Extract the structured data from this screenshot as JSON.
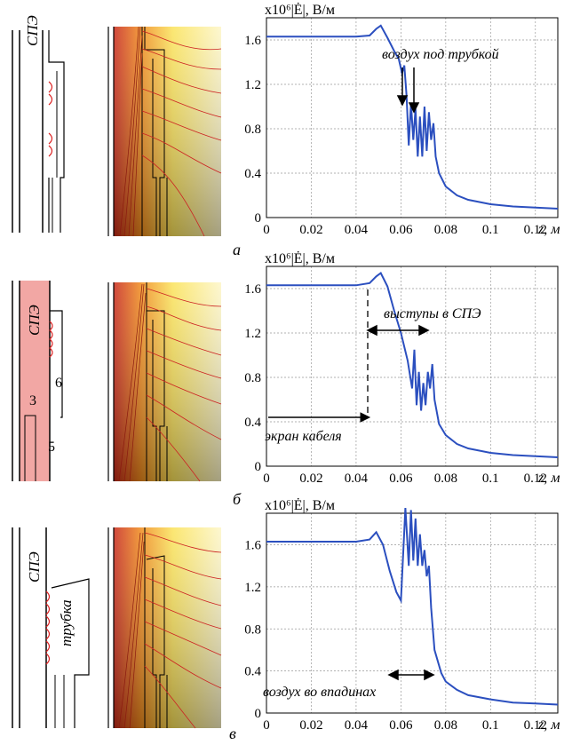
{
  "panels": [
    {
      "letter": "а",
      "geom_labels": [
        "СПЭ"
      ],
      "annotation": "воздух под трубкой",
      "ylabel": "x10⁶|Ė|, В/м",
      "xlabel": "z, м"
    },
    {
      "letter": "б",
      "geom_labels": [
        "СПЭ",
        "3",
        "6",
        "5"
      ],
      "annotation": "выступы в СПЭ",
      "annotation2": "экран кабеля",
      "ylabel": "x10⁶|Ė|, В/м",
      "xlabel": "z, м"
    },
    {
      "letter": "в",
      "geom_labels": [
        "СПЭ",
        "трубка"
      ],
      "annotation": "воздух во впадинах",
      "ylabel": "x10⁶|Ė|, В/м",
      "xlabel": "z, м"
    }
  ],
  "colors": {
    "curve": "#2b4fbf",
    "red": "#cc2a2a",
    "xlpe_fill": "#f2a7a4"
  },
  "chart_data": [
    {
      "type": "line",
      "xlabel": "z, м",
      "ylabel": "x10⁶|Ė|, В/м",
      "xlim": [
        0,
        0.13
      ],
      "ylim": [
        0,
        1.8
      ],
      "xticks": [
        "0",
        "0.02",
        "0.04",
        "0.06",
        "0.08",
        "0.1",
        "0.12"
      ],
      "yticks": [
        "0",
        "0.4",
        "0.8",
        "1.2",
        "1.6"
      ],
      "grid": true,
      "x": [
        0,
        0.02,
        0.04,
        0.046,
        0.049,
        0.051,
        0.054,
        0.057,
        0.059,
        0.0605,
        0.0615,
        0.0625,
        0.0635,
        0.0645,
        0.0655,
        0.0665,
        0.0675,
        0.0685,
        0.0695,
        0.0705,
        0.0715,
        0.0725,
        0.0735,
        0.0745,
        0.0755,
        0.077,
        0.08,
        0.085,
        0.09,
        0.1,
        0.11,
        0.12,
        0.13
      ],
      "y": [
        1.63,
        1.63,
        1.63,
        1.64,
        1.7,
        1.73,
        1.62,
        1.5,
        1.43,
        1.3,
        1.37,
        1.1,
        0.65,
        1.03,
        0.7,
        0.98,
        0.55,
        0.91,
        0.55,
        1.0,
        0.6,
        0.95,
        0.7,
        0.85,
        0.55,
        0.4,
        0.28,
        0.2,
        0.16,
        0.12,
        0.1,
        0.09,
        0.08
      ]
    },
    {
      "type": "line",
      "xlabel": "z, м",
      "ylabel": "x10⁶|Ė|, В/м",
      "xlim": [
        0,
        0.13
      ],
      "ylim": [
        0,
        1.8
      ],
      "xticks": [
        "0",
        "0.02",
        "0.04",
        "0.06",
        "0.08",
        "0.1",
        "0.12"
      ],
      "yticks": [
        "0",
        "0.4",
        "0.8",
        "1.2",
        "1.6"
      ],
      "grid": true,
      "x": [
        0,
        0.02,
        0.04,
        0.046,
        0.049,
        0.051,
        0.054,
        0.057,
        0.06,
        0.063,
        0.065,
        0.066,
        0.067,
        0.068,
        0.069,
        0.07,
        0.071,
        0.072,
        0.073,
        0.074,
        0.075,
        0.077,
        0.08,
        0.085,
        0.09,
        0.1,
        0.11,
        0.12,
        0.13
      ],
      "y": [
        1.63,
        1.63,
        1.63,
        1.65,
        1.71,
        1.74,
        1.62,
        1.4,
        1.2,
        0.95,
        0.7,
        1.05,
        0.55,
        0.85,
        0.5,
        0.75,
        0.55,
        0.85,
        0.7,
        0.92,
        0.6,
        0.38,
        0.28,
        0.2,
        0.16,
        0.12,
        0.1,
        0.09,
        0.08
      ]
    },
    {
      "type": "line",
      "xlabel": "z, м",
      "ylabel": "x10⁶|Ė|, В/м",
      "xlim": [
        0,
        0.13
      ],
      "ylim": [
        0,
        1.9
      ],
      "xticks": [
        "0",
        "0.02",
        "0.04",
        "0.06",
        "0.08",
        "0.1",
        "0.12"
      ],
      "yticks": [
        "0",
        "0.4",
        "0.8",
        "1.2",
        "1.6"
      ],
      "grid": true,
      "x": [
        0,
        0.02,
        0.04,
        0.046,
        0.049,
        0.052,
        0.055,
        0.058,
        0.06,
        0.062,
        0.0635,
        0.0645,
        0.0655,
        0.0665,
        0.0675,
        0.0685,
        0.0695,
        0.0705,
        0.0715,
        0.0725,
        0.0735,
        0.075,
        0.078,
        0.08,
        0.085,
        0.09,
        0.1,
        0.11,
        0.12,
        0.13
      ],
      "y": [
        1.63,
        1.63,
        1.63,
        1.65,
        1.72,
        1.6,
        1.35,
        1.15,
        1.07,
        1.95,
        1.4,
        1.93,
        1.45,
        1.85,
        1.4,
        1.7,
        1.4,
        1.55,
        1.3,
        1.4,
        1.0,
        0.6,
        0.38,
        0.3,
        0.22,
        0.17,
        0.13,
        0.1,
        0.09,
        0.08
      ]
    }
  ]
}
